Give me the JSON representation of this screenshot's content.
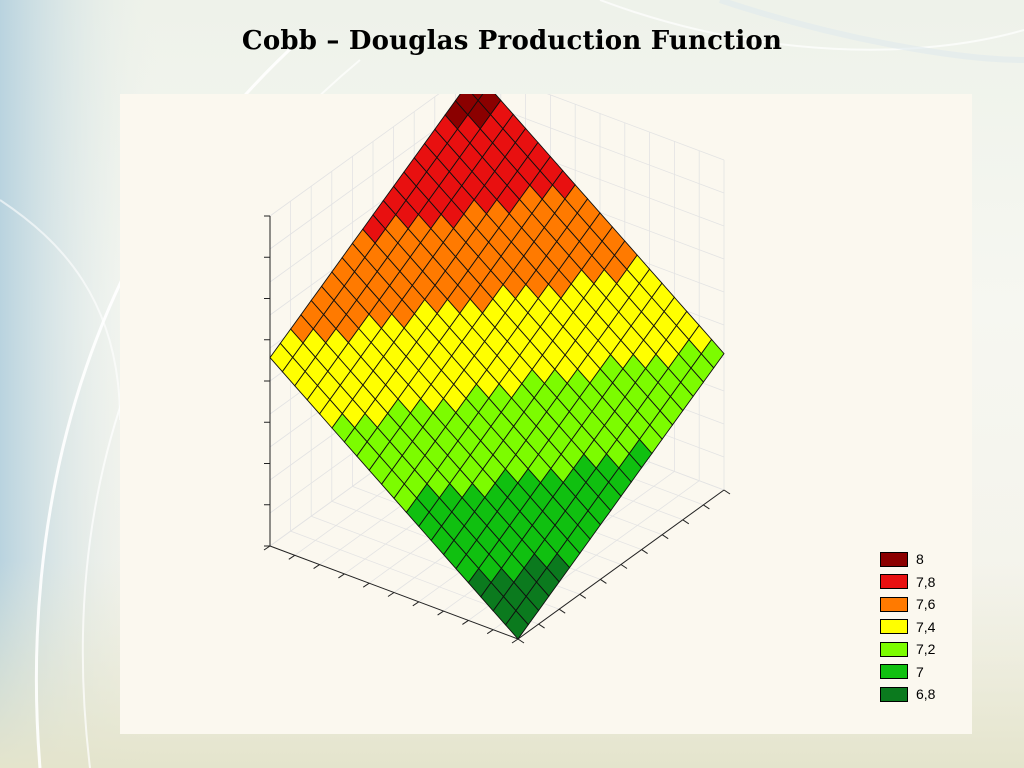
{
  "slide": {
    "title": "Cobb – Douglas Production Function"
  },
  "chart_data": {
    "type": "surface3d",
    "title": "",
    "xlabel": "",
    "ylabel": "",
    "zlabel": "",
    "grid": true,
    "legend_position": "bottom-right",
    "surface": {
      "grid_size": [
        21,
        21
      ],
      "z_range": [
        6.75,
        8.02
      ],
      "z_at_far_corner": 8.0,
      "z_at_near_corner": 6.75
    },
    "legend": [
      {
        "label": "8",
        "color": "#8b0000"
      },
      {
        "label": "7,8",
        "color": "#e81010"
      },
      {
        "label": "7,6",
        "color": "#ff7a00"
      },
      {
        "label": "7,4",
        "color": "#ffff00"
      },
      {
        "label": "7,2",
        "color": "#7cfc00"
      },
      {
        "label": "7",
        "color": "#10c010"
      },
      {
        "label": "6,8",
        "color": "#0b7a1e"
      }
    ]
  }
}
